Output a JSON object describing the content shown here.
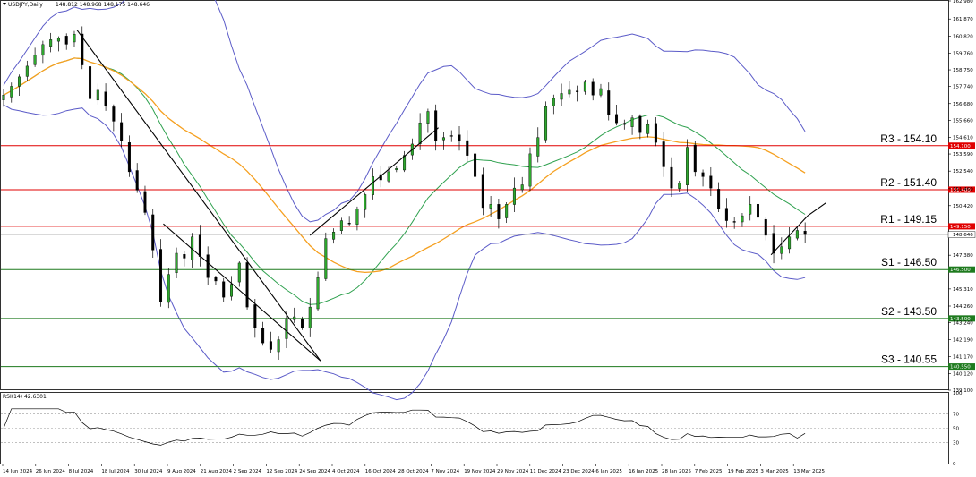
{
  "header": {
    "symbol": "USDJPY,Daily",
    "ohlc": "148.812 148.968 148.175 148.646"
  },
  "chart_data": [
    {
      "type": "candlestick",
      "title": "USDJPY,Daily",
      "ylim": [
        139.1,
        162.98
      ],
      "y_ticks": [
        "162.980",
        "161.870",
        "160.820",
        "159.760",
        "158.750",
        "157.740",
        "156.680",
        "155.660",
        "154.610",
        "153.590",
        "152.540",
        "151.460",
        "150.420",
        "149.150",
        "148.646",
        "147.380",
        "146.500",
        "145.310",
        "144.260",
        "143.500",
        "143.240",
        "142.190",
        "141.170",
        "140.120",
        "139.100"
      ],
      "x_ticks": [
        "14 Jun 2024",
        "26 Jun 2024",
        "8 Jul 2024",
        "18 Jul 2024",
        "30 Jul 2024",
        "9 Aug 2024",
        "21 Aug 2024",
        "2 Sep 2024",
        "12 Sep 2024",
        "24 Sep 2024",
        "4 Oct 2024",
        "16 Oct 2024",
        "28 Oct 2024",
        "7 Nov 2024",
        "19 Nov 2024",
        "29 Nov 2024",
        "11 Dec 2024",
        "23 Dec 2024",
        "6 Jan 2025",
        "16 Jan 2025",
        "28 Jan 2025",
        "7 Feb 2025",
        "19 Feb 2025",
        "3 Mar 2025",
        "13 Mar 2025"
      ],
      "current_price": 148.646,
      "levels": [
        {
          "label": "R3 - 154.10",
          "value": 154.1,
          "tag": "154.100",
          "color": "#e00000"
        },
        {
          "label": "R2 - 151.40",
          "value": 151.4,
          "tag": "151.400",
          "color": "#e00000"
        },
        {
          "label": "R1 - 149.15",
          "value": 149.15,
          "tag": "149.150",
          "color": "#e00000"
        },
        {
          "label": "S1 - 146.50",
          "value": 146.5,
          "tag": "146.500",
          "color": "#1e7a1e"
        },
        {
          "label": "S2 - 143.50",
          "value": 143.5,
          "tag": "143.500",
          "color": "#1e7a1e"
        },
        {
          "label": "S3 - 140.55",
          "value": 140.55,
          "tag": "140.550",
          "color": "#1e7a1e"
        }
      ],
      "close_path": [
        [
          0,
          157.2
        ],
        [
          5,
          158.1
        ],
        [
          10,
          159.2
        ],
        [
          15,
          160.3
        ],
        [
          20,
          160.8
        ],
        [
          25,
          160.2
        ],
        [
          28,
          161.3
        ],
        [
          32,
          156.8
        ],
        [
          36,
          157.5
        ],
        [
          40,
          156.2
        ],
        [
          44,
          155.0
        ],
        [
          48,
          152.5
        ],
        [
          52,
          151.0
        ],
        [
          55,
          149.5
        ],
        [
          58,
          146.8
        ],
        [
          60,
          144.5
        ],
        [
          63,
          146.2
        ],
        [
          66,
          147.5
        ],
        [
          69,
          147.2
        ],
        [
          72,
          148.5
        ],
        [
          75,
          147.3
        ],
        [
          78,
          146.0
        ],
        [
          81,
          145.8
        ],
        [
          84,
          144.8
        ],
        [
          87,
          145.6
        ],
        [
          90,
          146.9
        ],
        [
          93,
          144.2
        ],
        [
          96,
          142.9
        ],
        [
          99,
          142.0
        ],
        [
          102,
          141.6
        ],
        [
          105,
          142.2
        ],
        [
          108,
          143.5
        ],
        [
          111,
          143.6
        ],
        [
          114,
          142.9
        ],
        [
          117,
          144.2
        ],
        [
          120,
          146.0
        ],
        [
          123,
          148.4
        ],
        [
          126,
          148.8
        ],
        [
          129,
          149.5
        ],
        [
          132,
          149.3
        ],
        [
          135,
          150.2
        ],
        [
          138,
          151.1
        ],
        [
          141,
          152.2
        ],
        [
          144,
          152.0
        ],
        [
          147,
          152.5
        ],
        [
          150,
          152.7
        ],
        [
          153,
          153.5
        ],
        [
          156,
          154.2
        ],
        [
          159,
          155.5
        ],
        [
          162,
          156.2
        ],
        [
          165,
          154.4
        ],
        [
          168,
          154.6
        ],
        [
          171,
          154.7
        ],
        [
          174,
          154.4
        ],
        [
          177,
          153.5
        ],
        [
          180,
          152.2
        ],
        [
          183,
          150.3
        ],
        [
          186,
          150.5
        ],
        [
          189,
          149.6
        ],
        [
          192,
          150.5
        ],
        [
          195,
          151.5
        ],
        [
          198,
          151.7
        ],
        [
          201,
          153.6
        ],
        [
          204,
          154.6
        ],
        [
          207,
          156.5
        ],
        [
          210,
          157.0
        ],
        [
          213,
          157.3
        ],
        [
          216,
          157.5
        ],
        [
          219,
          157.4
        ],
        [
          222,
          158.0
        ],
        [
          225,
          157.2
        ],
        [
          228,
          157.6
        ],
        [
          231,
          156.0
        ],
        [
          234,
          155.5
        ],
        [
          237,
          155.4
        ],
        [
          240,
          155.8
        ],
        [
          243,
          154.9
        ],
        [
          246,
          155.4
        ],
        [
          249,
          154.3
        ],
        [
          252,
          152.8
        ],
        [
          255,
          151.5
        ],
        [
          258,
          151.8
        ],
        [
          261,
          154.0
        ],
        [
          264,
          152.5
        ],
        [
          267,
          152.2
        ],
        [
          270,
          151.5
        ],
        [
          273,
          150.2
        ],
        [
          276,
          149.5
        ],
        [
          279,
          149.4
        ],
        [
          282,
          149.8
        ],
        [
          285,
          150.5
        ],
        [
          288,
          149.7
        ],
        [
          291,
          148.6
        ],
        [
          294,
          147.5
        ],
        [
          297,
          147.9
        ],
        [
          300,
          148.5
        ],
        [
          303,
          148.9
        ],
        [
          306,
          149.1
        ],
        [
          308,
          148.646
        ]
      ],
      "indicators": [
        "Bollinger Bands",
        "Moving average 50",
        "Moving average 100"
      ]
    },
    {
      "type": "line",
      "title": "RSI(14) 42.6301",
      "ylim": [
        0,
        100
      ],
      "y_ticks": [
        "100",
        "70",
        "50",
        "30",
        "0"
      ],
      "levels": [
        70,
        50,
        30
      ],
      "current": 42.6301
    }
  ]
}
